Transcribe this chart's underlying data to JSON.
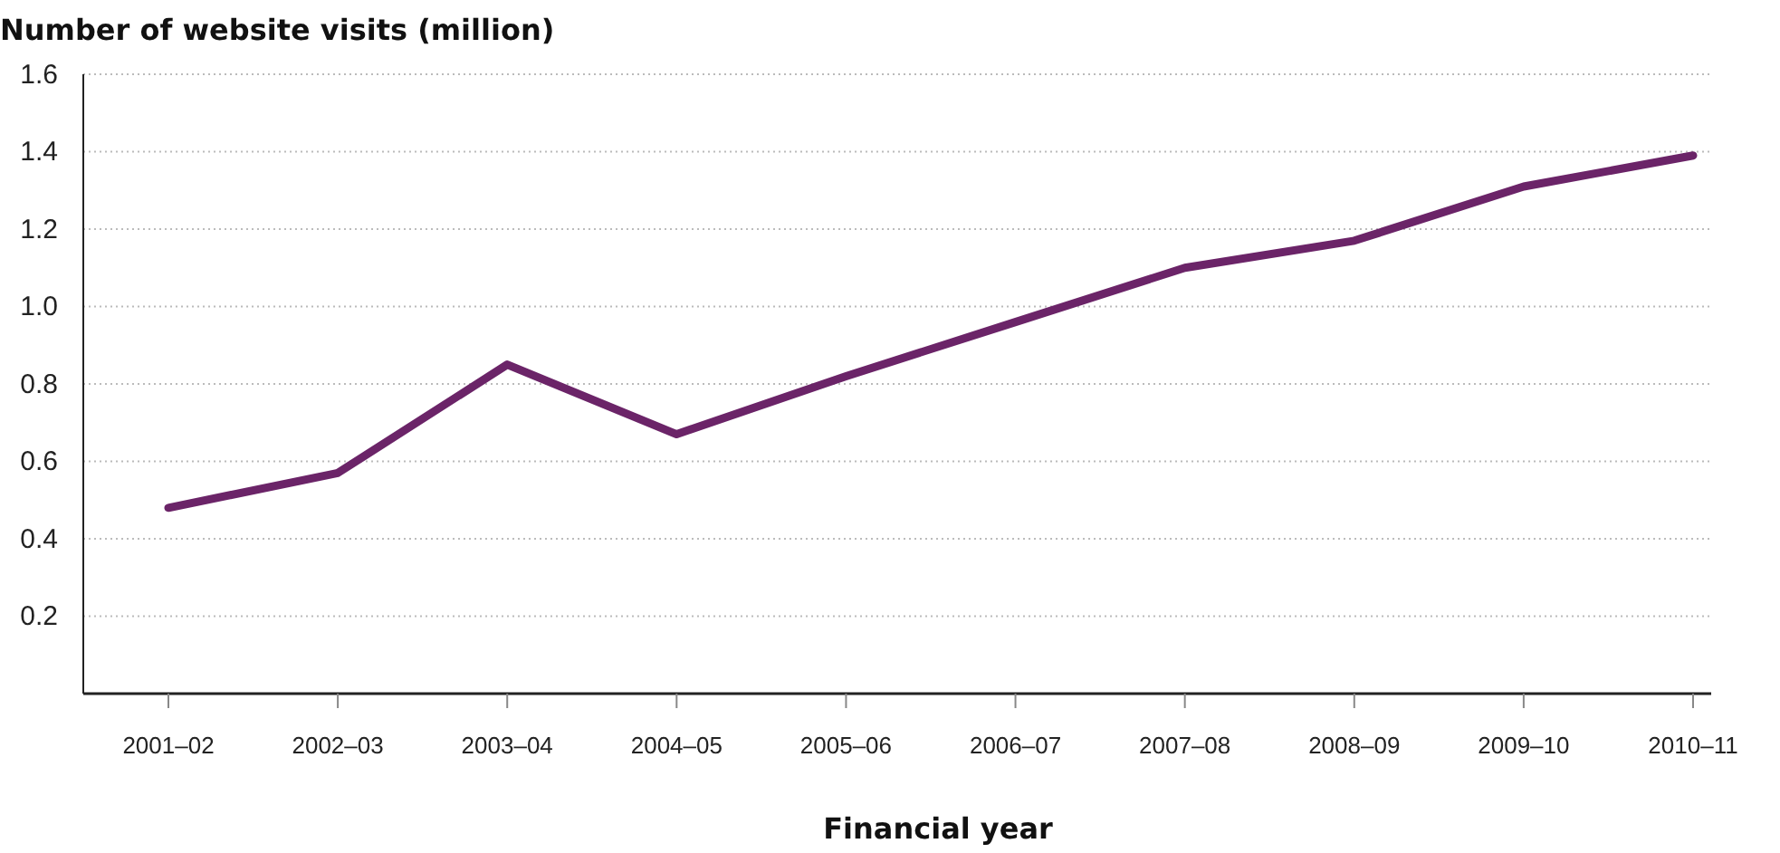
{
  "chart_data": {
    "type": "line",
    "ylabel": "Number of website visits (million)",
    "xlabel": "Financial year",
    "categories": [
      "2001–02",
      "2002–03",
      "2003–04",
      "2004–05",
      "2005–06",
      "2006–07",
      "2007–08",
      "2008–09",
      "2009–10",
      "2010–11"
    ],
    "series": [
      {
        "color": "#6b2468",
        "values": [
          0.48,
          0.57,
          0.85,
          0.67,
          0.82,
          0.96,
          1.1,
          1.17,
          1.31,
          1.39
        ]
      }
    ],
    "ylim": [
      0,
      1.6
    ],
    "yticks": [
      {
        "value": 0.2,
        "label": "0.2"
      },
      {
        "value": 0.4,
        "label": "0.4"
      },
      {
        "value": 0.6,
        "label": "0.6"
      },
      {
        "value": 0.8,
        "label": "0.8"
      },
      {
        "value": 1,
        "label": "1.0"
      },
      {
        "value": 1.2,
        "label": "1.2"
      },
      {
        "value": 1.4,
        "label": "1.4"
      },
      {
        "value": 1.6,
        "label": "1.6"
      }
    ],
    "grid": "y",
    "marker": "none",
    "line_style": "solid"
  }
}
